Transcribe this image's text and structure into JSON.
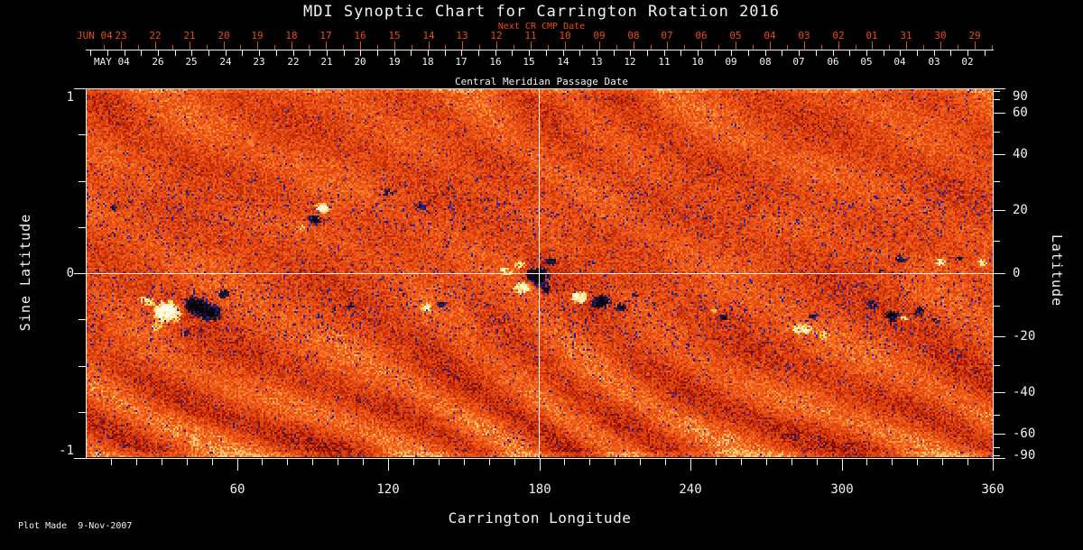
{
  "title": "MDI Synoptic Chart for Carrington Rotation 2016",
  "axes": {
    "next_cr": {
      "label": "Next CR CMP Date",
      "month": "JUN 04",
      "days": [
        "23",
        "22",
        "21",
        "20",
        "19",
        "18",
        "17",
        "16",
        "15",
        "14",
        "13",
        "12",
        "11",
        "10",
        "09",
        "08",
        "07",
        "06",
        "05",
        "04",
        "03",
        "02",
        "01",
        "31",
        "30",
        "29"
      ]
    },
    "cmp": {
      "label": "Central Meridian Passage Date",
      "month": "MAY 04",
      "days": [
        "26",
        "25",
        "24",
        "23",
        "22",
        "21",
        "20",
        "19",
        "18",
        "17",
        "16",
        "15",
        "14",
        "13",
        "12",
        "11",
        "10",
        "09",
        "08",
        "07",
        "06",
        "05",
        "04",
        "03",
        "02"
      ]
    },
    "longitude": {
      "label": "Carrington Longitude",
      "ticks": [
        "60",
        "120",
        "180",
        "240",
        "300",
        "360"
      ]
    },
    "sine_latitude": {
      "label": "Sine Latitude",
      "ticks": [
        "1",
        "0",
        "-1"
      ]
    },
    "latitude": {
      "label": "Latitude",
      "ticks": [
        "90",
        "60",
        "40",
        "20",
        "0",
        "-20",
        "-40",
        "-60",
        "-90"
      ]
    }
  },
  "footer": {
    "plot_made": "Plot Made  9-Nov-2007"
  },
  "colors": {
    "background": "#000000",
    "axis_white": "#f2f2f2",
    "axis_red": "#ee4a0c",
    "crosshair_white": "#fdfdfd",
    "magnetogram_dark_maroon": "#6e0a00",
    "magnetogram_dark_red": "#9c1400",
    "magnetogram_red": "#c32e08",
    "magnetogram_base_orange": "#e2470f",
    "magnetogram_orange": "#f0601c",
    "magnetogram_bright_orange": "#fa7e2c",
    "magnetogram_light_orange": "#ff9f46",
    "magnetogram_pale_yellow": "#ffc878",
    "positive_polarity_white": "#fffdf2",
    "negative_polarity_black": "#050509",
    "negative_polarity_blue": "#2c2380",
    "speckle_blue": "#1d1a8e"
  },
  "chart_data": {
    "type": "heatmap",
    "title": "MDI Synoptic Chart for Carrington Rotation 2016",
    "xlabel": "Carrington Longitude",
    "ylabel_left": "Sine Latitude",
    "ylabel_right": "Latitude",
    "xlim": [
      0,
      360
    ],
    "x_ticks": [
      60,
      120,
      180,
      240,
      300,
      360
    ],
    "x_minor_tick_step_deg": 10,
    "ylim_sine_latitude": [
      -1,
      1
    ],
    "sine_latitude_ticks": [
      1,
      0,
      -1
    ],
    "latitude_ticks": [
      90,
      60,
      40,
      20,
      0,
      -20,
      -40,
      -60,
      -90
    ],
    "top_axis_next_cr_cmp_date": {
      "label": "Next CR CMP Date",
      "month": "JUN 04",
      "days": [
        "23",
        "22",
        "21",
        "20",
        "19",
        "18",
        "17",
        "16",
        "15",
        "14",
        "13",
        "12",
        "11",
        "10",
        "09",
        "08",
        "07",
        "06",
        "05",
        "04",
        "03",
        "02",
        "01",
        "31",
        "30",
        "29"
      ]
    },
    "top_axis_cmp_date": {
      "label": "Central Meridian Passage Date",
      "month": "MAY 04",
      "days": [
        "26",
        "25",
        "24",
        "23",
        "22",
        "21",
        "20",
        "19",
        "18",
        "17",
        "16",
        "15",
        "14",
        "13",
        "12",
        "11",
        "10",
        "09",
        "08",
        "07",
        "06",
        "05",
        "04",
        "03",
        "02"
      ]
    },
    "crosshair": {
      "carrington_longitude": 180,
      "latitude": 0
    },
    "colormap": "solar magnetogram: orange/red noise background, white patches = positive magnetic polarity, black/dark-blue patches = negative polarity",
    "active_region_bands_latitude": [
      15,
      -15
    ],
    "plot_made": "9-Nov-2007"
  }
}
